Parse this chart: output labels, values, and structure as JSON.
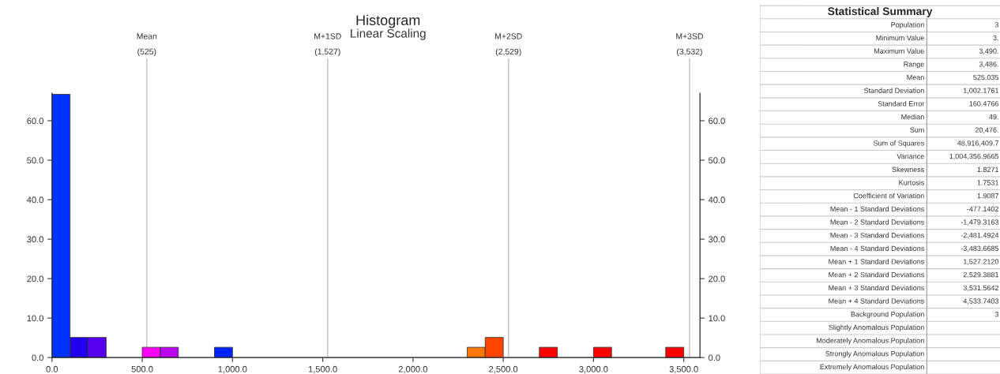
{
  "chart_data": [
    {
      "type": "histogram",
      "title": "Histogram",
      "subtitle": "Linear Scaling",
      "bins": [
        0,
        100,
        200,
        300,
        400,
        500,
        600,
        700,
        800,
        900,
        1000,
        1100,
        1200,
        1300,
        1400,
        1500,
        1600,
        1700,
        1800,
        1900,
        2000,
        2100,
        2200,
        2300,
        2400,
        2500,
        2600,
        2700,
        2800,
        2900,
        3000,
        3100,
        3200,
        3300,
        3400,
        3500
      ],
      "values": [
        66.7,
        5.1,
        5.1,
        0,
        0,
        2.6,
        2.6,
        0,
        0,
        2.6,
        0,
        0,
        0,
        0,
        0,
        0,
        0,
        0,
        0,
        0,
        0,
        0,
        0,
        2.6,
        5.1,
        0,
        0,
        2.6,
        0,
        0,
        2.6,
        0,
        0,
        0,
        2.6
      ],
      "colors": [
        "#0033ff",
        "#2200ee",
        "#5500ee",
        "#0033ff",
        "#0033ff",
        "#ff00ff",
        "#bb00ee",
        "#0033ff",
        "#0033ff",
        "#0022ff",
        "#0033ff",
        "#0033ff",
        "#0033ff",
        "#0033ff",
        "#0033ff",
        "#0033ff",
        "#0033ff",
        "#0033ff",
        "#0033ff",
        "#0033ff",
        "#0033ff",
        "#0033ff",
        "#0033ff",
        "#ff7700",
        "#ff4400",
        "#ff0000",
        "#ff0000",
        "#ff0000",
        "#ff0000",
        "#ff0000",
        "#ff0000",
        "#ff0000",
        "#ff0000",
        "#ff0000",
        "#ff0000"
      ],
      "xlim": [
        0,
        3590
      ],
      "ylim": [
        0,
        67
      ],
      "xticks": [
        {
          "value": 0,
          "label": "0.0"
        },
        {
          "value": 500,
          "label": "500.0"
        },
        {
          "value": 1000,
          "label": "1,000.0"
        },
        {
          "value": 1500,
          "label": "1,500.0"
        },
        {
          "value": 2000,
          "label": "2,000.0"
        },
        {
          "value": 2500,
          "label": "2,500.0"
        },
        {
          "value": 3000,
          "label": "3,000.0"
        },
        {
          "value": 3500,
          "label": "3,500.0"
        }
      ],
      "yticks": [
        {
          "value": 0,
          "label": "0.0"
        },
        {
          "value": 10,
          "label": "10.0"
        },
        {
          "value": 20,
          "label": "20.0"
        },
        {
          "value": 30,
          "label": "30.0"
        },
        {
          "value": 40,
          "label": "40.0"
        },
        {
          "value": 50,
          "label": "50.0"
        },
        {
          "value": 60,
          "label": "60.0"
        }
      ],
      "y2lim": [
        0,
        67
      ],
      "y2ticks": [
        {
          "value": 0,
          "label": "0.0"
        },
        {
          "value": 10,
          "label": "10.0"
        },
        {
          "value": 20,
          "label": "20.0"
        },
        {
          "value": 30,
          "label": "30.0"
        },
        {
          "value": 40,
          "label": "40.0"
        },
        {
          "value": 50,
          "label": "50.0"
        },
        {
          "value": 60,
          "label": "60.0"
        }
      ],
      "ref_lines": [
        {
          "axis": "x",
          "value": 525,
          "label": "Mean\n\n(525)",
          "color": "#c8c8c8"
        },
        {
          "axis": "x",
          "value": 1527,
          "label": "M+1SD\n\n(1,527)",
          "color": "#c8c8c8"
        },
        {
          "axis": "x",
          "value": 2529,
          "label": "M+2SD\n\n(2,529)",
          "color": "#c8c8c8"
        },
        {
          "axis": "x",
          "value": 3532,
          "label": "M+3SD\n\n(3,532)",
          "color": "#c8c8c8"
        }
      ],
      "grid": false,
      "legend": false
    },
    {
      "type": "other",
      "title": "Statistical Summary",
      "categories": [
        "Population",
        "Minimum Value",
        "Maximum Value",
        "Range",
        "Mean",
        "Standard Deviation",
        "Standard Error",
        "Median",
        "Sum",
        "Sum of Squares",
        "Variance",
        "Skewness",
        "Kurtosis",
        "Coefficient of Variation",
        "Mean - 1 Standard Deviations",
        "Mean - 2 Standard Deviations",
        "Mean - 3 Standard Deviations",
        "Mean - 4 Standard Deviations",
        "Mean + 1 Standard Deviations",
        "Mean + 2 Standard Deviations",
        "Mean + 3 Standard Deviations",
        "Mean + 4 Standard Deviations",
        "Background Population",
        "Slightly Anomalous Population",
        "Moderately Anomalous Population",
        "Strongly Anomalous Population",
        "Extremely Anomalous Population"
      ],
      "value_labels": [
        "3",
        "3.",
        "3,490.",
        "3,486.",
        "525.035",
        "1,002.1761",
        "160.4766",
        "49.",
        "20,476.",
        "48,916,409.7",
        "1,004,356.9665",
        "1.8271",
        "1.7531",
        "1.9087",
        "-477.1402",
        "-1,479.3163",
        "-2,481.4924",
        "-3,483.6685",
        "1,527.2120",
        "2,529.3881",
        "3,531.5642",
        "4,533.7403",
        "3",
        null,
        null,
        null,
        null
      ]
    }
  ]
}
